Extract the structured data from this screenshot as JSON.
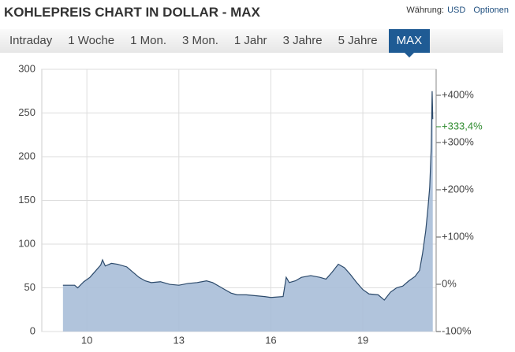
{
  "header": {
    "title": "KOHLEPREIS CHART IN DOLLAR - MAX",
    "currency_label": "Währung:",
    "currency": "USD",
    "options": "Optionen"
  },
  "tabs": [
    "Intraday",
    "1 Woche",
    "1 Mon.",
    "3 Mon.",
    "1 Jahr",
    "3 Jahre",
    "5 Jahre",
    "MAX"
  ],
  "active_tab": 7,
  "chart_data": {
    "type": "area",
    "x": [
      9.22,
      9.6,
      9.7,
      9.9,
      10.1,
      10.3,
      10.45,
      10.51,
      10.6,
      10.8,
      11.0,
      11.3,
      11.5,
      11.7,
      11.9,
      12.1,
      12.4,
      12.7,
      13.0,
      13.3,
      13.6,
      13.9,
      14.1,
      14.3,
      14.5,
      14.7,
      14.9,
      15.2,
      15.5,
      15.8,
      16.0,
      16.4,
      16.5,
      16.6,
      16.8,
      17.0,
      17.3,
      17.6,
      17.8,
      18.0,
      18.2,
      18.4,
      18.6,
      18.8,
      19.0,
      19.2,
      19.5,
      19.7,
      19.9,
      20.1,
      20.3,
      20.5,
      20.7,
      20.85,
      20.95,
      21.05,
      21.12,
      21.18,
      21.23,
      21.26,
      21.28
    ],
    "series": [
      {
        "color": "#2c4a6b",
        "fill": "#a8bed8",
        "values": [
          53,
          53,
          50,
          57,
          62,
          70,
          76,
          82,
          75,
          78,
          77,
          74,
          68,
          62,
          58,
          56,
          57,
          54,
          53,
          55,
          56,
          58,
          56,
          52,
          48,
          44,
          42,
          42,
          41,
          40,
          39,
          40,
          62,
          56,
          58,
          62,
          64,
          62,
          60,
          68,
          77,
          73,
          65,
          56,
          48,
          43,
          42,
          36,
          45,
          50,
          52,
          58,
          63,
          70,
          90,
          115,
          140,
          165,
          210,
          275,
          243
        ]
      }
    ],
    "xlim": [
      8.53,
      21.39
    ],
    "xticks": [
      10,
      13,
      16,
      19
    ],
    "ylim": [
      0,
      300
    ],
    "yticks": [
      0,
      50,
      100,
      150,
      200,
      250,
      300
    ],
    "y2lim": [
      -100,
      455
    ],
    "y2ticks": [
      {
        "value": -100,
        "label": "-100%"
      },
      {
        "value": 0,
        "label": "0%"
      },
      {
        "value": 100,
        "label": "+100%"
      },
      {
        "value": 200,
        "label": "+200%"
      },
      {
        "value": 300,
        "label": "+300%"
      },
      {
        "value": 400,
        "label": "+400%"
      }
    ],
    "annotation": {
      "value": 333.4,
      "label": "+333,4%",
      "color": "#2e8b2e"
    },
    "grid": true
  }
}
